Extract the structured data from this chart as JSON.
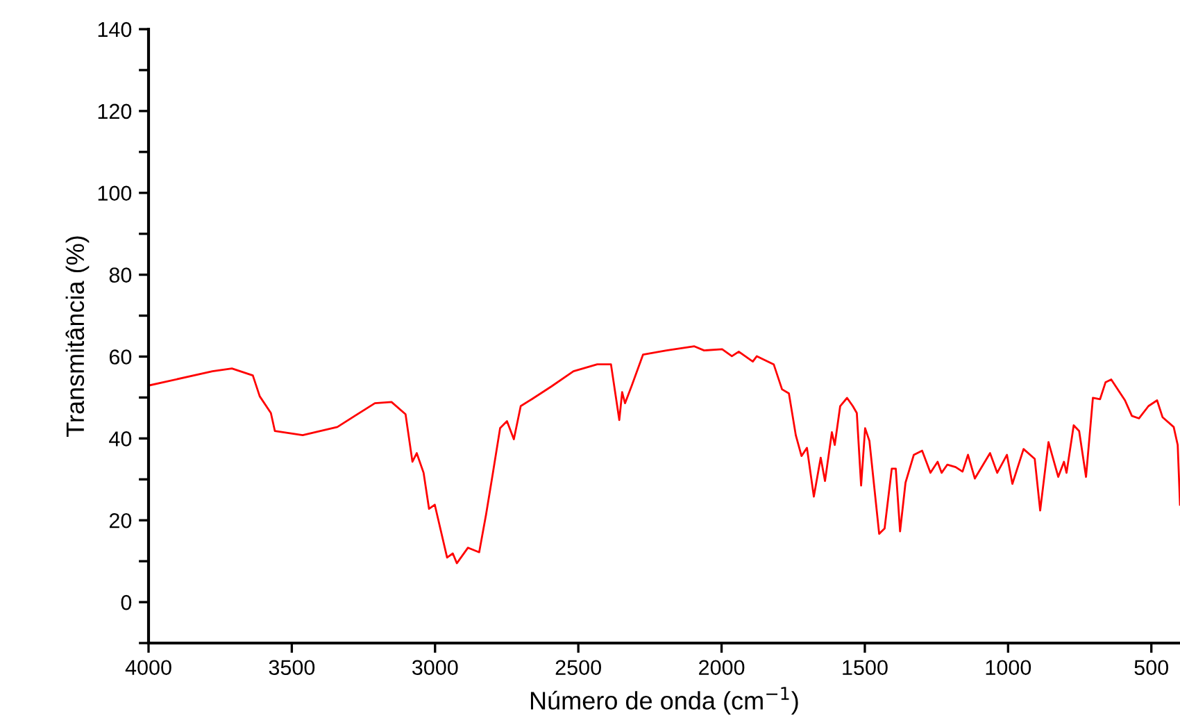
{
  "chart_data": {
    "type": "line",
    "xlabel": "Número de onda (cm$^{−1}$)",
    "ylabel": "Transmitância (%)",
    "xlim": [
      4000,
      400
    ],
    "ylim": [
      -10,
      140
    ],
    "xticks": [
      4000,
      3500,
      3000,
      2500,
      2000,
      1500,
      1000,
      500
    ],
    "yticks": [
      {
        "value": -10,
        "label": null
      },
      0,
      {
        "value": 10,
        "label": null
      },
      20,
      {
        "value": 30,
        "label": null
      },
      40,
      {
        "value": 50,
        "label": null
      },
      60,
      {
        "value": 70,
        "label": null
      },
      80,
      {
        "value": 90,
        "label": null
      },
      100,
      {
        "value": 110,
        "label": null
      },
      120,
      {
        "value": 130,
        "label": null
      },
      140
    ],
    "grid": false,
    "marker": "none",
    "line_style": "solid",
    "series": [
      {
        "color": "#ff0000",
        "x": [
          3995,
          3777,
          3709,
          3636,
          3612,
          3573,
          3559,
          3462,
          3341,
          3210,
          3152,
          3103,
          3079,
          3064,
          3040,
          3021,
          3001,
          2958,
          2938,
          2924,
          2885,
          2846,
          2822,
          2798,
          2773,
          2749,
          2725,
          2701,
          2662,
          2594,
          2517,
          2434,
          2386,
          2357,
          2347,
          2337,
          2313,
          2274,
          2192,
          2095,
          2061,
          1998,
          1964,
          1940,
          1891,
          1877,
          1818,
          1789,
          1765,
          1741,
          1721,
          1702,
          1678,
          1654,
          1639,
          1615,
          1605,
          1586,
          1562,
          1542,
          1528,
          1513,
          1499,
          1484,
          1450,
          1431,
          1406,
          1392,
          1377,
          1358,
          1329,
          1300,
          1271,
          1246,
          1232,
          1212,
          1183,
          1159,
          1140,
          1116,
          1063,
          1038,
          1004,
          985,
          946,
          907,
          888,
          859,
          825,
          805,
          796,
          771,
          752,
          728,
          704,
          679,
          660,
          640,
          592,
          568,
          543,
          510,
          480,
          461,
          422,
          408,
          400
        ],
        "values": [
          53.0,
          56.4,
          57.1,
          55.4,
          50.3,
          46.2,
          41.8,
          40.8,
          42.8,
          48.6,
          48.9,
          45.9,
          34.3,
          36.4,
          31.6,
          22.8,
          23.8,
          10.9,
          11.9,
          9.5,
          13.3,
          12.2,
          21.4,
          31.6,
          42.5,
          44.2,
          39.8,
          47.9,
          49.6,
          52.7,
          56.4,
          58.1,
          58.1,
          44.5,
          51.3,
          48.6,
          53.0,
          60.5,
          61.5,
          62.5,
          61.5,
          61.8,
          60.1,
          61.2,
          58.8,
          60.1,
          58.1,
          52.0,
          51.0,
          40.8,
          35.7,
          37.7,
          25.8,
          35.3,
          29.6,
          41.5,
          38.4,
          47.9,
          49.9,
          47.9,
          46.2,
          28.5,
          42.5,
          39.4,
          16.7,
          18.0,
          32.6,
          32.6,
          17.3,
          29.2,
          36.0,
          37.0,
          31.6,
          34.3,
          31.6,
          33.6,
          33.0,
          31.9,
          36.0,
          30.2,
          36.4,
          31.6,
          36.0,
          28.9,
          37.4,
          35.0,
          22.4,
          39.1,
          30.6,
          34.3,
          31.6,
          43.2,
          41.8,
          30.6,
          49.9,
          49.6,
          53.7,
          54.4,
          49.3,
          45.5,
          44.9,
          47.9,
          49.3,
          45.2,
          42.8,
          38.4,
          23.8
        ]
      }
    ]
  }
}
